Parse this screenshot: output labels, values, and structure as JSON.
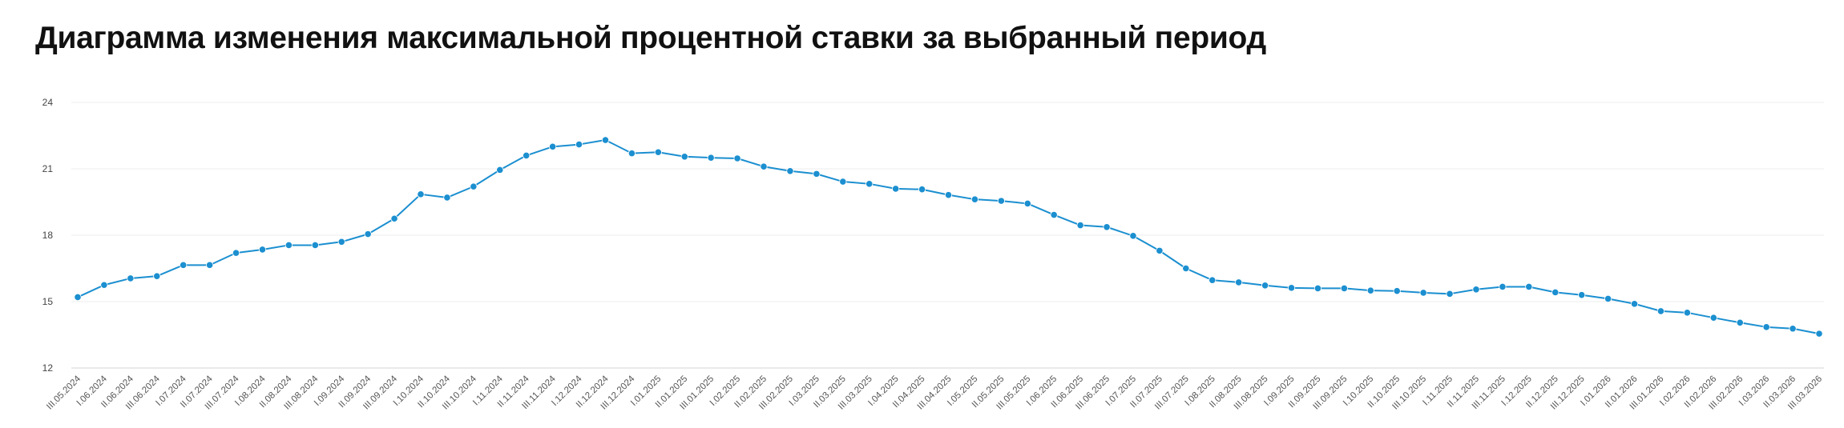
{
  "chart_data": {
    "type": "line",
    "title": "Диаграмма изменения максимальной процентной ставки за выбранный период",
    "xlabel": "",
    "ylabel": "",
    "ylim": [
      12,
      24
    ],
    "y_ticks": [
      12,
      15,
      18,
      21,
      24
    ],
    "grid": true,
    "legend": "none",
    "line_color": "#1b8fd0",
    "x": [
      "III.05.2024",
      "I.06.2024",
      "II.06.2024",
      "III.06.2024",
      "I.07.2024",
      "II.07.2024",
      "III.07.2024",
      "I.08.2024",
      "II.08.2024",
      "III.08.2024",
      "I.09.2024",
      "II.09.2024",
      "III.09.2024",
      "I.10.2024",
      "II.10.2024",
      "III.10.2024",
      "I.11.2024",
      "II.11.2024",
      "III.11.2024",
      "I.12.2024",
      "II.12.2024",
      "III.12.2024",
      "I.01.2025",
      "II.01.2025",
      "III.01.2025",
      "I.02.2025",
      "II.02.2025",
      "III.02.2025",
      "I.03.2025",
      "II.03.2025",
      "III.03.2025",
      "I.04.2025",
      "II.04.2025",
      "III.04.2025",
      "I.05.2025",
      "II.05.2025",
      "III.05.2025",
      "I.06.2025",
      "II.06.2025",
      "III.06.2025",
      "I.07.2025",
      "II.07.2025",
      "III.07.2025",
      "I.08.2025",
      "II.08.2025",
      "III.08.2025",
      "I.09.2025",
      "II.09.2025",
      "III.09.2025",
      "I.10.2025",
      "II.10.2025",
      "III.10.2025",
      "I.11.2025",
      "II.11.2025",
      "III.11.2025",
      "I.12.2025",
      "II.12.2025",
      "III.12.2025",
      "I.01.2026",
      "II.01.2026",
      "III.01.2026",
      "I.02.2026",
      "II.02.2026",
      "III.02.2026",
      "I.03.2026",
      "II.03.2026",
      "III.03.2026"
    ],
    "series": [
      {
        "values": [
          15.2,
          15.75,
          16.05,
          16.15,
          16.65,
          16.65,
          17.2,
          17.35,
          17.55,
          17.55,
          17.7,
          18.05,
          18.75,
          19.85,
          19.7,
          20.2,
          20.95,
          21.6,
          22.0,
          22.1,
          22.3,
          21.7,
          21.75,
          21.55,
          21.5,
          21.47,
          21.1,
          20.9,
          20.77,
          20.42,
          20.32,
          20.1,
          20.07,
          19.82,
          19.62,
          19.55,
          19.43,
          18.92,
          18.45,
          18.37,
          17.97,
          17.3,
          16.5,
          15.97,
          15.87,
          15.73,
          15.62,
          15.6,
          15.6,
          15.5,
          15.48,
          15.4,
          15.35,
          15.55,
          15.67,
          15.67,
          15.42,
          15.3,
          15.13,
          14.9,
          14.57,
          14.5,
          14.27,
          14.05,
          13.85,
          13.78,
          13.55
        ]
      }
    ]
  }
}
